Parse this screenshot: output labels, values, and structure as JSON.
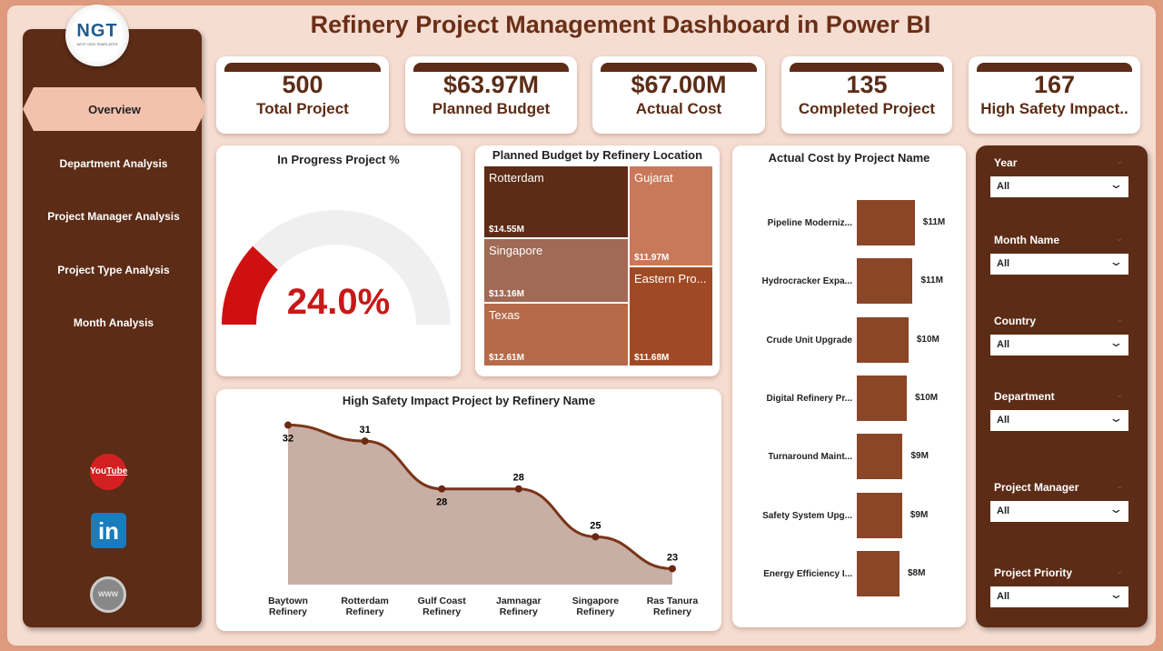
{
  "title": "Refinery Project Management Dashboard in Power BI",
  "logo": {
    "text": "NGT",
    "tagline": "NEXT GEN TEMPLATES"
  },
  "nav": {
    "active": "Overview",
    "items": [
      "Department Analysis",
      "Project Manager Analysis",
      "Project Type Analysis",
      "Month Analysis"
    ]
  },
  "social": [
    "youtube-icon",
    "linkedin-icon",
    "website-icon"
  ],
  "kpis": [
    {
      "value": "500",
      "label": "Total Project"
    },
    {
      "value": "$63.97M",
      "label": "Planned Budget"
    },
    {
      "value": "$67.00M",
      "label": "Actual Cost"
    },
    {
      "value": "135",
      "label": "Completed Project"
    },
    {
      "value": "167",
      "label": "High Safety Impact.."
    }
  ],
  "colors": {
    "brown": "#5c2c16",
    "bar": "#8b4527",
    "gauge_fill": "#d01010",
    "gauge_track": "#efefef"
  },
  "chart_data": [
    {
      "type": "gauge",
      "title": "In Progress Project %",
      "value": 24.0,
      "label": "24.0%",
      "max": 100
    },
    {
      "type": "treemap",
      "title": "Planned Budget by Refinery Location",
      "items": [
        {
          "name": "Rotterdam",
          "value": 14.55,
          "label": "$14.55M",
          "color": "#5c2c16"
        },
        {
          "name": "Singapore",
          "value": 13.16,
          "label": "$13.16M",
          "color": "#a06a55"
        },
        {
          "name": "Texas",
          "value": 12.61,
          "label": "$12.61M",
          "color": "#b56a4a"
        },
        {
          "name": "Gujarat",
          "value": 11.97,
          "label": "$11.97M",
          "color": "#c8795a"
        },
        {
          "name": "Eastern Pro...",
          "value": 11.68,
          "label": "$11.68M",
          "color": "#a04a25"
        }
      ]
    },
    {
      "type": "bar",
      "title": "Actual Cost by Project Name",
      "categories": [
        "Pipeline Moderniz...",
        "Hydrocracker Expa...",
        "Crude Unit Upgrade",
        "Digital Refinery Pr...",
        "Turnaround Maint...",
        "Safety System Upg...",
        "Energy Efficiency I..."
      ],
      "values": [
        11.0,
        10.6,
        9.8,
        9.5,
        8.7,
        8.6,
        8.1
      ],
      "labels": [
        "$11M",
        "$11M",
        "$10M",
        "$10M",
        "$9M",
        "$9M",
        "$8M"
      ]
    },
    {
      "type": "area",
      "title": "High Safety Impact Project by Refinery Name",
      "categories": [
        "Baytown Refinery",
        "Rotterdam Refinery",
        "Gulf Coast Refinery",
        "Jamnagar Refinery",
        "Singapore Refinery",
        "Ras Tanura Refinery"
      ],
      "values": [
        32,
        31,
        28,
        28,
        25,
        23
      ],
      "ylim": [
        22,
        33
      ]
    }
  ],
  "slicers": [
    {
      "label": "Year",
      "value": "All"
    },
    {
      "label": "Month Name",
      "value": "All"
    },
    {
      "label": "Country",
      "value": "All"
    },
    {
      "label": "Department",
      "value": "All"
    },
    {
      "label": "Project Manager",
      "value": "All"
    },
    {
      "label": "Project Priority",
      "value": "All"
    }
  ]
}
